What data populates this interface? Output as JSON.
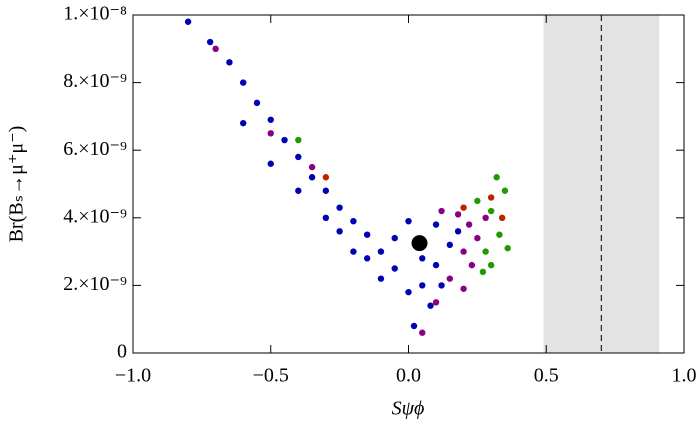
{
  "chart_data": {
    "type": "scatter",
    "x_label": "Sψϕ",
    "y_label": "Br(Bₛ→μ⁺μ⁻)",
    "xlim": [
      -1.0,
      1.0
    ],
    "ylim": [
      0,
      1e-08
    ],
    "xticks": [
      {
        "value": -1.0,
        "label": "−1.0"
      },
      {
        "value": -0.5,
        "label": "−0.5"
      },
      {
        "value": 0.0,
        "label": "0.0"
      },
      {
        "value": 0.5,
        "label": "0.5"
      },
      {
        "value": 1.0,
        "label": "1.0"
      }
    ],
    "yticks": [
      0,
      {
        "value": 2e-09,
        "label": "2.×10⁻⁹"
      },
      {
        "value": 4e-09,
        "label": "4.×10⁻⁹"
      },
      {
        "value": 6e-09,
        "label": "6.×10⁻⁹"
      },
      {
        "value": 8e-09,
        "label": "8.×10⁻⁹"
      },
      {
        "value": 1e-08,
        "label": "1.×10⁻⁸"
      }
    ],
    "shaded_region": [
      0.49,
      0.91
    ],
    "shaded_color": "#e3e3e3",
    "reference_line": 0.7,
    "series": [
      {
        "color": "#0000b4",
        "x": [
          -0.8,
          -0.72,
          -0.65,
          -0.6,
          -0.55,
          -0.5,
          -0.45,
          -0.4,
          -0.35,
          -0.3,
          -0.25,
          -0.2,
          -0.15,
          -0.1,
          -0.05,
          0,
          0.02,
          -0.3,
          -0.2,
          -0.1,
          0.05,
          0.1,
          0.15,
          0.1,
          0,
          -0.05,
          0.05,
          0.12,
          -0.15,
          -0.25,
          -0.4,
          -0.5,
          -0.6,
          0.18,
          0.08
        ],
        "values": [
          9.8e-09,
          9.2e-09,
          8.6e-09,
          8e-09,
          7.4e-09,
          6.9e-09,
          6.3e-09,
          5.8e-09,
          5.2e-09,
          4.8e-09,
          4.3e-09,
          3.9e-09,
          3.5e-09,
          3e-09,
          2.5e-09,
          1.8e-09,
          8e-10,
          4e-09,
          3e-09,
          2.2e-09,
          2e-09,
          2.6e-09,
          3.2e-09,
          3.8e-09,
          3.9e-09,
          3.4e-09,
          2.8e-09,
          2e-09,
          2.8e-09,
          3.6e-09,
          4.8e-09,
          5.6e-09,
          6.8e-09,
          3.6e-09,
          1.4e-09
        ]
      },
      {
        "color": "#8a0082",
        "x": [
          0.15,
          0.2,
          0.22,
          0.25,
          0.18,
          0.1,
          0.05,
          0.23,
          -0.35,
          -0.5,
          -0.7,
          0.28,
          0.2,
          0.12
        ],
        "values": [
          2.2e-09,
          3e-09,
          3.8e-09,
          3.4e-09,
          4.1e-09,
          1.5e-09,
          6e-10,
          2.6e-09,
          5.5e-09,
          6.5e-09,
          9e-09,
          4e-09,
          1.9e-09,
          4.2e-09
        ]
      },
      {
        "color": "#1f9a00",
        "x": [
          0.28,
          0.3,
          0.33,
          0.35,
          0.3,
          0.25,
          0.32,
          -0.4,
          0.27,
          0.36
        ],
        "values": [
          3e-09,
          4.2e-09,
          3.5e-09,
          4.8e-09,
          2.6e-09,
          4.5e-09,
          5.2e-09,
          6.3e-09,
          2.4e-09,
          3.1e-09
        ]
      },
      {
        "color": "#c02000",
        "x": [
          0.3,
          -0.3,
          0.2,
          0.34
        ],
        "values": [
          4.6e-09,
          5.2e-09,
          4.3e-09,
          4e-09
        ]
      }
    ],
    "highlight_point": {
      "x": 0.04,
      "value": 3.25e-09,
      "color": "#000000"
    }
  }
}
